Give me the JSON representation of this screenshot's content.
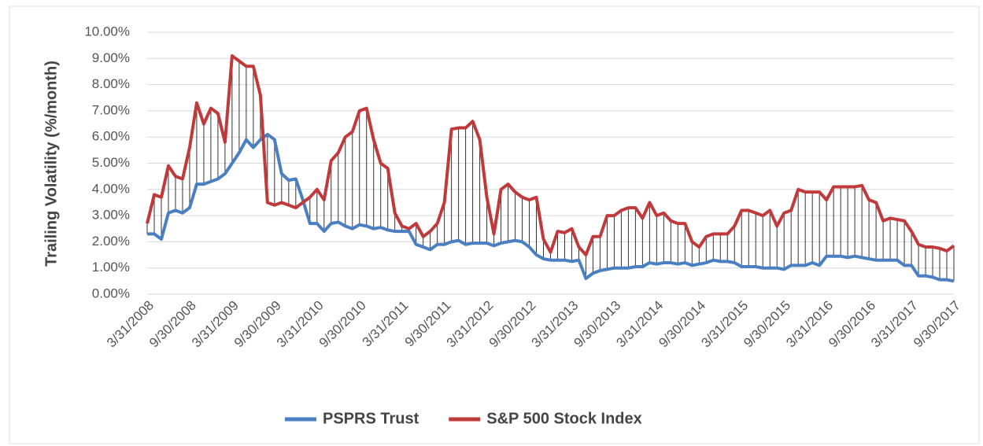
{
  "chart_data": {
    "type": "line",
    "y_label": "Trailing Volatility (%/month)",
    "categories": [
      "3/31/2008",
      null,
      null,
      null,
      null,
      null,
      "9/30/2008",
      null,
      null,
      null,
      null,
      null,
      "3/31/2009",
      null,
      null,
      null,
      null,
      null,
      "9/30/2009",
      null,
      null,
      null,
      null,
      null,
      "3/31/2010",
      null,
      null,
      null,
      null,
      null,
      "9/30/2010",
      null,
      null,
      null,
      null,
      null,
      "3/31/2011",
      null,
      null,
      null,
      null,
      null,
      "9/30/2011",
      null,
      null,
      null,
      null,
      null,
      "3/31/2012",
      null,
      null,
      null,
      null,
      null,
      "9/30/2012",
      null,
      null,
      null,
      null,
      null,
      "3/31/2013",
      null,
      null,
      null,
      null,
      null,
      "9/30/2013",
      null,
      null,
      null,
      null,
      null,
      "3/31/2014",
      null,
      null,
      null,
      null,
      null,
      "9/30/2014",
      null,
      null,
      null,
      null,
      null,
      "3/31/2015",
      null,
      null,
      null,
      null,
      null,
      "9/30/2015",
      null,
      null,
      null,
      null,
      null,
      "3/31/2016",
      null,
      null,
      null,
      null,
      null,
      "9/30/2016",
      null,
      null,
      null,
      null,
      null,
      "3/31/2017",
      null,
      null,
      null,
      null,
      null,
      "9/30/2017"
    ],
    "series": [
      {
        "name": "PSPRS Trust",
        "color": "#4a7fc1",
        "values": [
          2.3,
          2.3,
          2.1,
          3.1,
          3.2,
          3.1,
          3.3,
          4.2,
          4.2,
          4.3,
          4.4,
          4.6,
          5.0,
          5.4,
          5.9,
          5.6,
          5.9,
          6.1,
          5.9,
          4.6,
          4.35,
          4.4,
          3.6,
          2.7,
          2.7,
          2.4,
          2.7,
          2.75,
          2.6,
          2.5,
          2.65,
          2.6,
          2.5,
          2.55,
          2.45,
          2.4,
          2.4,
          2.4,
          1.9,
          1.8,
          1.7,
          1.9,
          1.9,
          2.0,
          2.05,
          1.9,
          1.95,
          1.95,
          1.95,
          1.85,
          1.95,
          2.0,
          2.05,
          2.0,
          1.8,
          1.5,
          1.35,
          1.3,
          1.3,
          1.3,
          1.25,
          1.3,
          0.6,
          0.8,
          0.9,
          0.95,
          1.0,
          1.0,
          1.0,
          1.05,
          1.05,
          1.2,
          1.15,
          1.2,
          1.2,
          1.15,
          1.2,
          1.1,
          1.15,
          1.2,
          1.3,
          1.25,
          1.25,
          1.2,
          1.05,
          1.05,
          1.05,
          1.0,
          1.0,
          1.0,
          0.95,
          1.1,
          1.1,
          1.1,
          1.2,
          1.1,
          1.45,
          1.45,
          1.45,
          1.4,
          1.45,
          1.4,
          1.35,
          1.3,
          1.3,
          1.3,
          1.3,
          1.1,
          1.1,
          0.7,
          0.7,
          0.65,
          0.55,
          0.55,
          0.5
        ]
      },
      {
        "name": "S&P 500 Stock Index",
        "color": "#c0393b",
        "values": [
          2.7,
          3.8,
          3.7,
          4.9,
          4.5,
          4.4,
          5.6,
          7.3,
          6.5,
          7.1,
          6.9,
          5.8,
          9.1,
          8.9,
          8.7,
          8.7,
          7.6,
          3.5,
          3.4,
          3.5,
          3.4,
          3.3,
          3.5,
          3.7,
          4.0,
          3.6,
          5.1,
          5.4,
          6.0,
          6.2,
          7.0,
          7.1,
          5.9,
          5.0,
          4.8,
          3.1,
          2.6,
          2.5,
          2.7,
          2.2,
          2.4,
          2.7,
          3.5,
          6.3,
          6.35,
          6.35,
          6.6,
          5.9,
          3.7,
          2.3,
          4.0,
          4.2,
          3.9,
          3.7,
          3.6,
          3.7,
          2.1,
          1.6,
          2.4,
          2.35,
          2.5,
          1.8,
          1.5,
          2.2,
          2.2,
          3.0,
          3.0,
          3.2,
          3.3,
          3.3,
          2.9,
          3.5,
          3.0,
          3.1,
          2.8,
          2.7,
          2.7,
          2.0,
          1.8,
          2.2,
          2.3,
          2.3,
          2.3,
          2.6,
          3.2,
          3.2,
          3.1,
          3.0,
          3.2,
          2.6,
          3.1,
          3.2,
          4.0,
          3.9,
          3.9,
          3.9,
          3.6,
          4.1,
          4.1,
          4.1,
          4.1,
          4.15,
          3.6,
          3.5,
          2.8,
          2.9,
          2.85,
          2.8,
          2.4,
          1.9,
          1.8,
          1.8,
          1.75,
          1.65,
          1.85
        ]
      }
    ],
    "drop_lines": true,
    "ylim": [
      0,
      10
    ],
    "yticks": [
      {
        "value": 0,
        "label": "0.00%"
      },
      {
        "value": 1,
        "label": "1.00%"
      },
      {
        "value": 2,
        "label": "2.00%"
      },
      {
        "value": 3,
        "label": "3.00%"
      },
      {
        "value": 4,
        "label": "4.00%"
      },
      {
        "value": 5,
        "label": "5.00%"
      },
      {
        "value": 6,
        "label": "6.00%"
      },
      {
        "value": 7,
        "label": "7.00%"
      },
      {
        "value": 8,
        "label": "8.00%"
      },
      {
        "value": 9,
        "label": "9.00%"
      },
      {
        "value": 10,
        "label": "10.00%"
      }
    ],
    "grid": true,
    "legend": "bottom"
  }
}
